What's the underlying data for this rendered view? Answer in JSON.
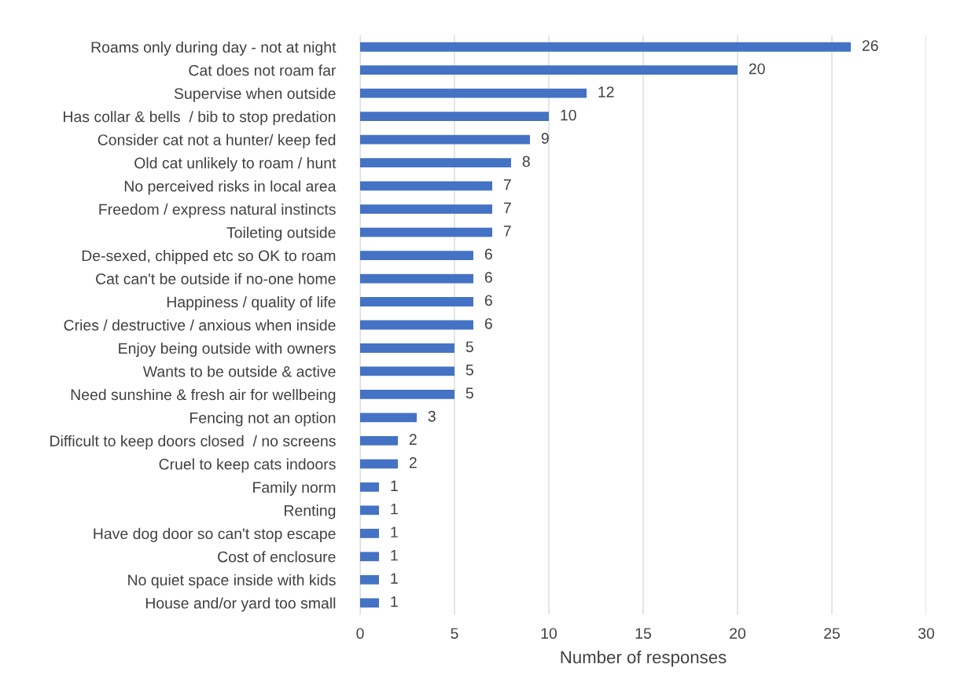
{
  "chart_data": {
    "type": "bar",
    "orientation": "horizontal",
    "xlabel": "Number of responses",
    "categories": [
      "Roams only during day - not at night",
      "Cat does not roam far",
      "Supervise when outside",
      "Has collar & bells  / bib to stop predation",
      "Consider cat not a hunter/ keep fed",
      "Old cat unlikely to roam / hunt",
      "No perceived risks in local area",
      "Freedom / express natural instincts",
      "Toileting outside",
      "De-sexed, chipped etc so OK to roam",
      "Cat can't be outside if no-one home",
      "Happiness / quality of life",
      "Cries / destructive / anxious when inside",
      "Enjoy being outside with owners",
      "Wants to be outside & active",
      "Need sunshine & fresh air for wellbeing",
      "Fencing not an option",
      "Difficult to keep doors closed  / no screens",
      "Cruel to keep cats indoors",
      "Family norm",
      "Renting",
      "Have dog door so can't stop escape",
      "Cost of enclosure",
      "No quiet space inside with kids",
      "House and/or yard too small"
    ],
    "values": [
      26,
      20,
      12,
      10,
      9,
      8,
      7,
      7,
      7,
      6,
      6,
      6,
      6,
      5,
      5,
      5,
      3,
      2,
      2,
      1,
      1,
      1,
      1,
      1,
      1
    ],
    "color": "#4472c4",
    "data_labels": true,
    "xlim": [
      0,
      30
    ],
    "xticks": [
      0,
      5,
      10,
      15,
      20,
      25,
      30
    ],
    "grid": "x",
    "legend": false
  }
}
